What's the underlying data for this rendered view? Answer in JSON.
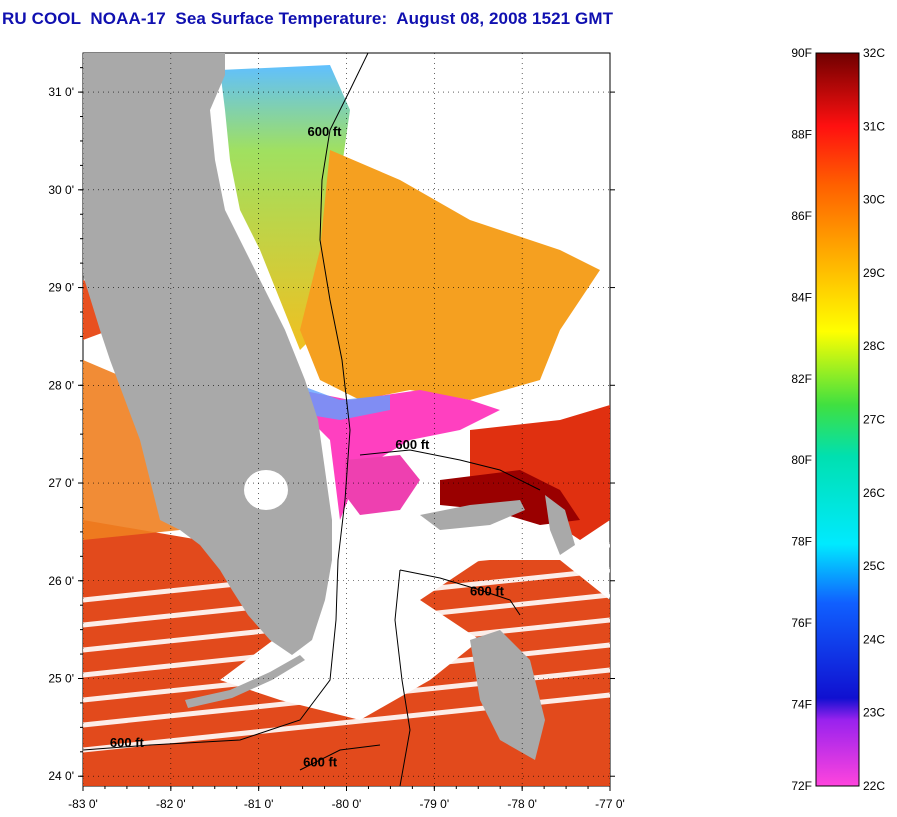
{
  "title": "RU COOL  NOAA-17  Sea Surface Temperature:  August 08, 2008 1521 GMT",
  "map": {
    "lon_range": [
      -83,
      -77
    ],
    "lat_range": [
      23.9,
      31.4
    ],
    "x_ticks": [
      {
        "value": -83,
        "label": "-83 0'"
      },
      {
        "value": -82,
        "label": "-82 0'"
      },
      {
        "value": -81,
        "label": "-81 0'"
      },
      {
        "value": -80,
        "label": "-80 0'"
      },
      {
        "value": -79,
        "label": "-79 0'"
      },
      {
        "value": -78,
        "label": "-78 0'"
      },
      {
        "value": -77,
        "label": "-77 0'"
      }
    ],
    "y_ticks": [
      {
        "value": 31,
        "label": "31 0'"
      },
      {
        "value": 30,
        "label": "30 0'"
      },
      {
        "value": 29,
        "label": "29 0'"
      },
      {
        "value": 28,
        "label": "28 0'"
      },
      {
        "value": 27,
        "label": "27 0'"
      },
      {
        "value": 26,
        "label": "26 0'"
      },
      {
        "value": 25,
        "label": "25 0'"
      },
      {
        "value": 24,
        "label": "24 0'"
      }
    ],
    "grid": true,
    "contour_labels": [
      {
        "text": "600 ft",
        "lon": -80.25,
        "lat": 30.55
      },
      {
        "text": "600 ft",
        "lon": -79.25,
        "lat": 27.35
      },
      {
        "text": "600 ft",
        "lon": -78.4,
        "lat": 25.85
      },
      {
        "text": "600 ft",
        "lon": -82.5,
        "lat": 24.3
      },
      {
        "text": "600 ft",
        "lon": -80.3,
        "lat": 24.1
      }
    ],
    "colors": {
      "land": "#a9a9a9",
      "cloud": "#ffffff"
    }
  },
  "colorbar": {
    "f_labels": [
      "90F",
      "88F",
      "86F",
      "84F",
      "82F",
      "80F",
      "78F",
      "76F",
      "74F",
      "72F"
    ],
    "c_labels": [
      "32C",
      "31C",
      "30C",
      "29C",
      "28C",
      "27C",
      "26C",
      "25C",
      "24C",
      "23C",
      "22C"
    ],
    "range_c": [
      22,
      32
    ]
  }
}
